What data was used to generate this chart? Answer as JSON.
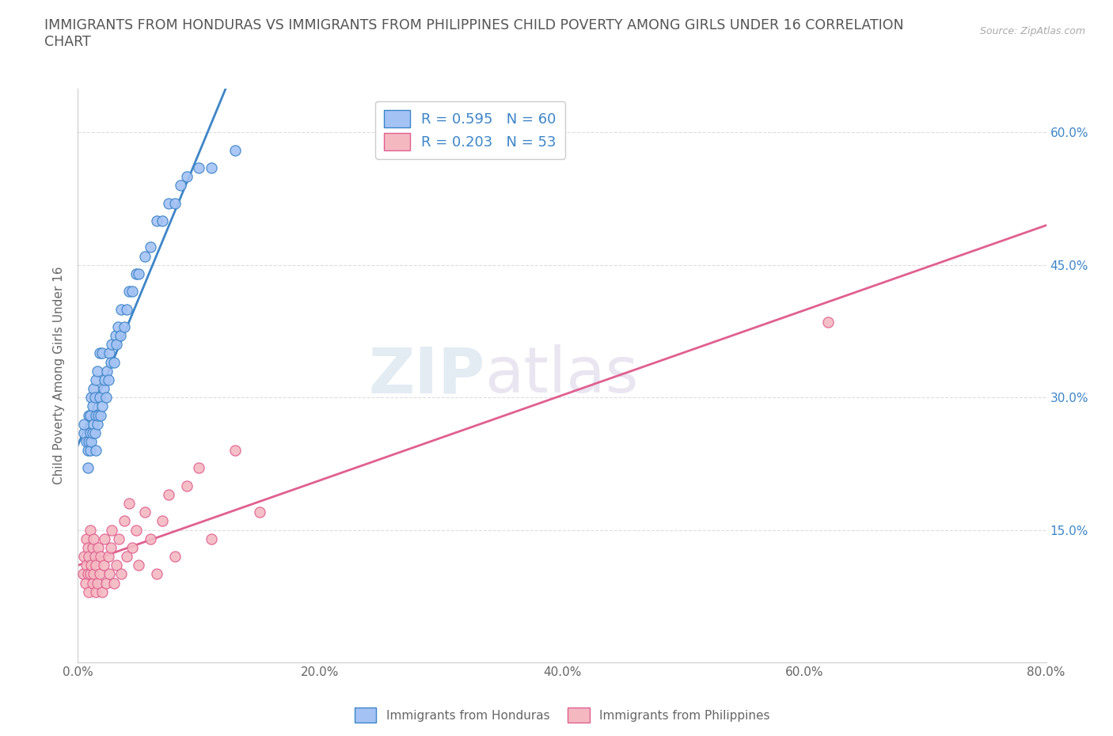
{
  "title": "IMMIGRANTS FROM HONDURAS VS IMMIGRANTS FROM PHILIPPINES CHILD POVERTY AMONG GIRLS UNDER 16 CORRELATION\nCHART",
  "source": "Source: ZipAtlas.com",
  "ylabel": "Child Poverty Among Girls Under 16",
  "xlim": [
    0.0,
    0.8
  ],
  "ylim": [
    0.0,
    0.65
  ],
  "xticks": [
    0.0,
    0.2,
    0.4,
    0.6,
    0.8
  ],
  "xticklabels": [
    "0.0%",
    "20.0%",
    "40.0%",
    "60.0%",
    "80.0%"
  ],
  "yticks": [
    0.15,
    0.3,
    0.45,
    0.6
  ],
  "yticklabels": [
    "15.0%",
    "30.0%",
    "45.0%",
    "60.0%"
  ],
  "R_honduras": 0.595,
  "N_honduras": 60,
  "R_philippines": 0.203,
  "N_philippines": 53,
  "color_honduras": "#a4c2f4",
  "color_philippines": "#f4b8c1",
  "color_line_honduras": "#3d85c8",
  "color_line_philippines": "#e06090",
  "watermark_ZIP": "ZIP",
  "watermark_atlas": "atlas",
  "legend_labels": [
    "Immigrants from Honduras",
    "Immigrants from Philippines"
  ],
  "honduras_x": [
    0.005,
    0.005,
    0.007,
    0.008,
    0.008,
    0.009,
    0.009,
    0.01,
    0.01,
    0.01,
    0.011,
    0.011,
    0.012,
    0.012,
    0.013,
    0.013,
    0.014,
    0.014,
    0.015,
    0.015,
    0.015,
    0.016,
    0.016,
    0.017,
    0.018,
    0.018,
    0.019,
    0.02,
    0.02,
    0.021,
    0.022,
    0.023,
    0.024,
    0.025,
    0.026,
    0.027,
    0.028,
    0.03,
    0.031,
    0.032,
    0.033,
    0.035,
    0.036,
    0.038,
    0.04,
    0.042,
    0.045,
    0.048,
    0.05,
    0.055,
    0.06,
    0.065,
    0.07,
    0.075,
    0.08,
    0.085,
    0.09,
    0.1,
    0.11,
    0.13
  ],
  "honduras_y": [
    0.26,
    0.27,
    0.25,
    0.22,
    0.24,
    0.25,
    0.28,
    0.24,
    0.26,
    0.28,
    0.25,
    0.3,
    0.26,
    0.29,
    0.27,
    0.31,
    0.26,
    0.3,
    0.24,
    0.28,
    0.32,
    0.27,
    0.33,
    0.28,
    0.3,
    0.35,
    0.28,
    0.29,
    0.35,
    0.31,
    0.32,
    0.3,
    0.33,
    0.32,
    0.35,
    0.34,
    0.36,
    0.34,
    0.37,
    0.36,
    0.38,
    0.37,
    0.4,
    0.38,
    0.4,
    0.42,
    0.42,
    0.44,
    0.44,
    0.46,
    0.47,
    0.5,
    0.5,
    0.52,
    0.52,
    0.54,
    0.55,
    0.56,
    0.56,
    0.58
  ],
  "philippines_x": [
    0.004,
    0.005,
    0.006,
    0.007,
    0.007,
    0.008,
    0.008,
    0.009,
    0.009,
    0.01,
    0.01,
    0.011,
    0.012,
    0.012,
    0.013,
    0.013,
    0.014,
    0.015,
    0.015,
    0.016,
    0.017,
    0.018,
    0.019,
    0.02,
    0.021,
    0.022,
    0.023,
    0.025,
    0.026,
    0.027,
    0.028,
    0.03,
    0.032,
    0.034,
    0.036,
    0.038,
    0.04,
    0.042,
    0.045,
    0.048,
    0.05,
    0.055,
    0.06,
    0.065,
    0.07,
    0.075,
    0.08,
    0.09,
    0.1,
    0.11,
    0.13,
    0.15,
    0.62
  ],
  "philippines_y": [
    0.1,
    0.12,
    0.09,
    0.11,
    0.14,
    0.1,
    0.13,
    0.08,
    0.12,
    0.1,
    0.15,
    0.11,
    0.09,
    0.13,
    0.1,
    0.14,
    0.12,
    0.08,
    0.11,
    0.09,
    0.13,
    0.1,
    0.12,
    0.08,
    0.11,
    0.14,
    0.09,
    0.12,
    0.1,
    0.13,
    0.15,
    0.09,
    0.11,
    0.14,
    0.1,
    0.16,
    0.12,
    0.18,
    0.13,
    0.15,
    0.11,
    0.17,
    0.14,
    0.1,
    0.16,
    0.19,
    0.12,
    0.2,
    0.22,
    0.14,
    0.24,
    0.17,
    0.385
  ],
  "background_color": "#ffffff",
  "grid_color": "#dddddd",
  "tick_color": "#666666",
  "title_color": "#555555",
  "title_fontsize": 12.5,
  "axis_fontsize": 11,
  "tick_fontsize": 11
}
